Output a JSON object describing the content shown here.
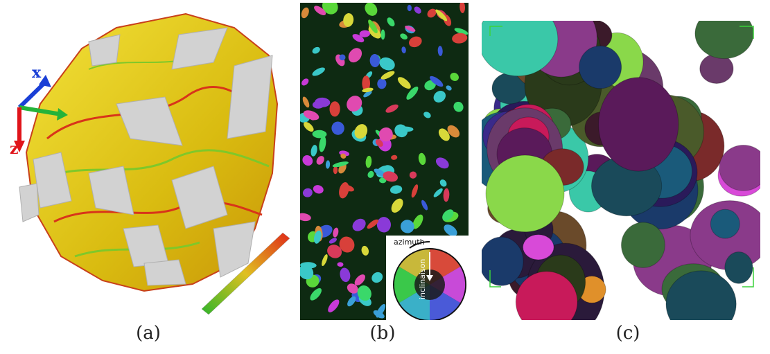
{
  "figure": {
    "panels": [
      {
        "id": "a",
        "caption": "(a)"
      },
      {
        "id": "b",
        "caption": "(b)"
      },
      {
        "id": "c",
        "caption": "(c)"
      }
    ]
  },
  "panel_a": {
    "axis_x": "x",
    "axis_z": "z",
    "colors": {
      "surface_yellow": "#e6cf18",
      "edge_red": "#d8341a",
      "edge_green": "#7ec82a",
      "cut_face": "#cfcfcf",
      "axis_blue": "#1a3fd6",
      "axis_green": "#25b33a",
      "axis_red": "#e0141a"
    }
  },
  "panel_b": {
    "wheel_top_label": "azimuth",
    "wheel_side_label": "inclinaison",
    "colors": {
      "background": "#0e2a12"
    }
  },
  "panel_c": {
    "colors": {
      "frame": "#3ad23a"
    }
  }
}
